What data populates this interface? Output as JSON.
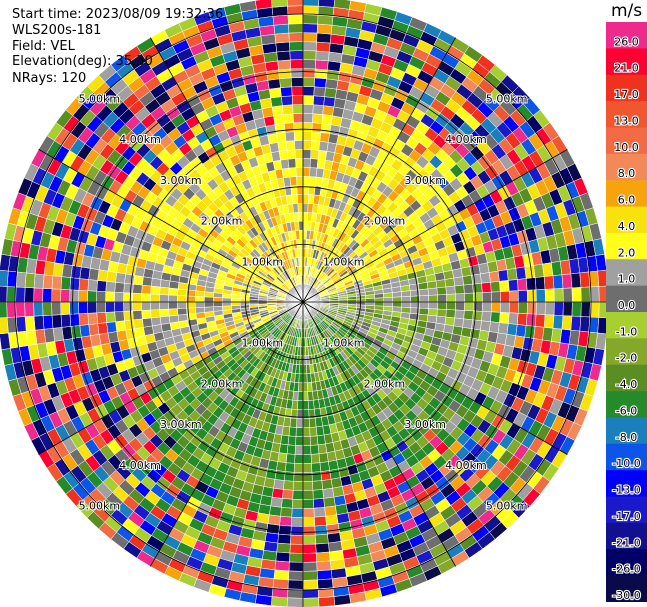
{
  "header": {
    "start_time": "Start time: 2023/08/09 19:32:36",
    "instrument": "WLS200s-181",
    "field": "Field: VEL",
    "elevation": "Elevation(deg): 35.30",
    "nrays": "NRays: 120"
  },
  "colorbar": {
    "unit": "m/s",
    "bins": [
      {
        "label": "26.0",
        "color": "#ee2b8c"
      },
      {
        "label": "21.0",
        "color": "#ff0033"
      },
      {
        "label": "17.0",
        "color": "#f0311e"
      },
      {
        "label": "13.0",
        "color": "#f2562f"
      },
      {
        "label": "10.0",
        "color": "#f36b45"
      },
      {
        "label": "8.0",
        "color": "#f38959"
      },
      {
        "label": "6.0",
        "color": "#f7a40c"
      },
      {
        "label": "4.0",
        "color": "#f7e20c"
      },
      {
        "label": "2.0",
        "color": "#ffff1a"
      },
      {
        "label": "1.0",
        "color": "#a0a0a0"
      },
      {
        "label": "0.0",
        "color": "#6e6e6e"
      },
      {
        "label": "-1.0",
        "color": "#a7cf32"
      },
      {
        "label": "-2.0",
        "color": "#83a82a"
      },
      {
        "label": "-4.0",
        "color": "#5a8d22"
      },
      {
        "label": "-6.0",
        "color": "#258b2a"
      },
      {
        "label": "-8.0",
        "color": "#1a7fbd"
      },
      {
        "label": "-10.0",
        "color": "#0d55e8"
      },
      {
        "label": "-13.0",
        "color": "#0000ff"
      },
      {
        "label": "-17.0",
        "color": "#1a1acc"
      },
      {
        "label": "-21.0",
        "color": "#101090"
      },
      {
        "label": "-26.0",
        "color": "#000066"
      },
      {
        "label": "-30.0",
        "color": "#0a0a4a"
      }
    ]
  },
  "chart_data": {
    "type": "heatmap",
    "projection": "polar-ppi",
    "field": "VEL",
    "n_rays": 120,
    "range_rings_km": [
      1,
      2,
      3,
      4,
      5
    ],
    "range_ring_labels": [
      "1.00km",
      "2.00km",
      "3.00km",
      "4.00km",
      "5.00km"
    ],
    "max_range_km": 5.3,
    "spoke_count": 12,
    "value_range": [
      -30,
      26
    ],
    "sector_summary": [
      {
        "sector": "north",
        "dominant_velocity": "2.0 to 6.0"
      },
      {
        "sector": "south",
        "dominant_velocity": "-4.0 to -8.0"
      },
      {
        "sector": "near-center-west",
        "dominant_velocity": "0.0 to 1.0"
      },
      {
        "sector": "outer-ring",
        "dominant_velocity": "noise -30.0 to 26.0"
      }
    ]
  }
}
